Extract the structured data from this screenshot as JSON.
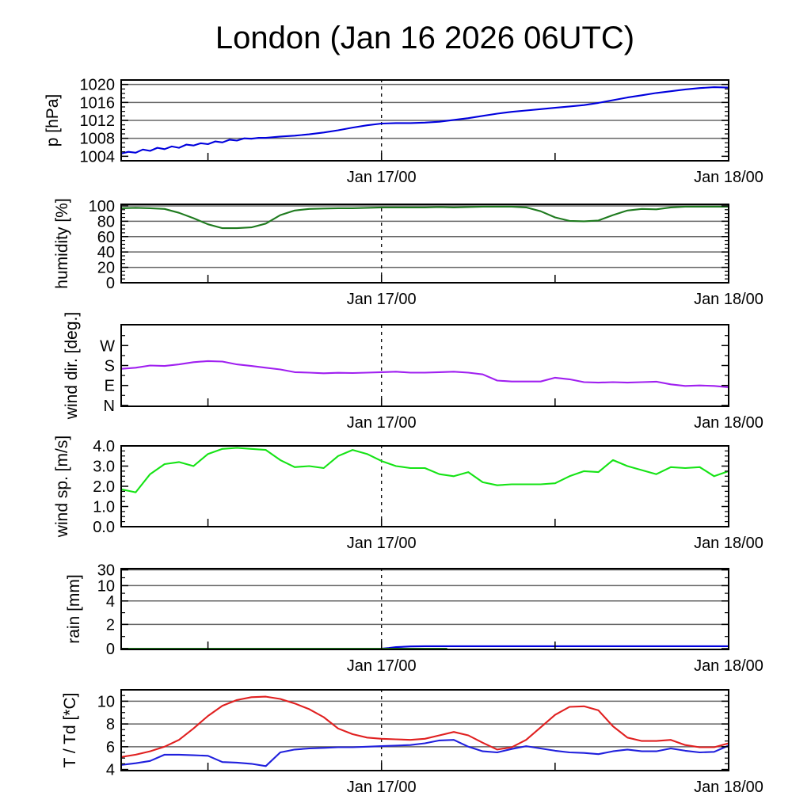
{
  "title": "London (Jan 16 2026 06UTC)",
  "x_axis": {
    "total_hours": 42,
    "tick_hours": [
      6,
      18,
      30
    ],
    "dashed_vline_hour": 18,
    "labels": [
      {
        "hour": 18,
        "text": "Jan 17/00"
      },
      {
        "hour": 42,
        "text": "Jan 18/00"
      }
    ]
  },
  "colors": {
    "axis": "#000000",
    "grid": "#666666",
    "pressure": "#0000dd",
    "humidity": "#1e7a1e",
    "wind_dir": "#a020f0",
    "wind_speed": "#15e315",
    "rain": "#0000dd",
    "rain_secondary": "#1e7a1e",
    "temperature": "#e02020",
    "dewpoint": "#2020dd"
  },
  "chart_data": [
    {
      "id": "pressure",
      "type": "line",
      "ylabel": "p [hPa]",
      "scale": {
        "kind": "linear",
        "min": 1003,
        "max": 1021
      },
      "yticks_major": [
        {
          "v": 1004,
          "label": "1004"
        },
        {
          "v": 1008,
          "label": "1008"
        },
        {
          "v": 1012,
          "label": "1012"
        },
        {
          "v": 1016,
          "label": "1016"
        },
        {
          "v": 1020,
          "label": "1020"
        }
      ],
      "yticks_minor": [
        1005,
        1006,
        1007,
        1009,
        1010,
        1011,
        1013,
        1014,
        1015,
        1017,
        1018,
        1019
      ],
      "grid_values": [
        1008,
        1012,
        1016,
        1020
      ],
      "series": [
        {
          "name": "pressure",
          "color": "#0000dd",
          "t": [
            0,
            0.5,
            1,
            1.5,
            2,
            2.5,
            3,
            3.5,
            4,
            4.5,
            5,
            5.5,
            6,
            6.5,
            7,
            7.5,
            8,
            8.5,
            9,
            9.5,
            10,
            11,
            12,
            13,
            14,
            15,
            16,
            17,
            18,
            19,
            20,
            21,
            22,
            23,
            24,
            25,
            26,
            27,
            28,
            29,
            30,
            31,
            32,
            33,
            34,
            35,
            36,
            37,
            38,
            39,
            40,
            41,
            42
          ],
          "v": [
            1004.6,
            1005.0,
            1004.8,
            1005.5,
            1005.2,
            1005.9,
            1005.6,
            1006.2,
            1005.9,
            1006.6,
            1006.4,
            1006.9,
            1006.7,
            1007.3,
            1007.1,
            1007.7,
            1007.5,
            1008.0,
            1007.9,
            1008.1,
            1008.1,
            1008.4,
            1008.6,
            1008.9,
            1009.3,
            1009.8,
            1010.4,
            1010.9,
            1011.3,
            1011.4,
            1011.4,
            1011.5,
            1011.7,
            1012.1,
            1012.5,
            1013.0,
            1013.5,
            1013.9,
            1014.2,
            1014.5,
            1014.8,
            1015.1,
            1015.4,
            1015.9,
            1016.5,
            1017.1,
            1017.6,
            1018.1,
            1018.5,
            1018.9,
            1019.2,
            1019.4,
            1019.3
          ]
        }
      ]
    },
    {
      "id": "humidity",
      "type": "line",
      "ylabel": "humidity [%]",
      "scale": {
        "kind": "linear",
        "min": 0,
        "max": 102
      },
      "yticks_major": [
        {
          "v": 0,
          "label": "0"
        },
        {
          "v": 20,
          "label": "20"
        },
        {
          "v": 40,
          "label": "40"
        },
        {
          "v": 60,
          "label": "60"
        },
        {
          "v": 80,
          "label": "80"
        },
        {
          "v": 100,
          "label": "100"
        }
      ],
      "yticks_minor": [
        5,
        10,
        15,
        25,
        30,
        35,
        45,
        50,
        55,
        65,
        70,
        75,
        85,
        90,
        95
      ],
      "grid_values": [
        20,
        40,
        60,
        80,
        100
      ],
      "series": [
        {
          "name": "humidity",
          "color": "#1e7a1e",
          "v": [
            97,
            97.5,
            97,
            96,
            91,
            84,
            76,
            71,
            71,
            72,
            77,
            88,
            94,
            96,
            96.5,
            97,
            97,
            97.5,
            98,
            98,
            98,
            98,
            98.5,
            98,
            98.5,
            99,
            99,
            99,
            98,
            93,
            85,
            80.5,
            80,
            81,
            88,
            94,
            96,
            95.5,
            98,
            99,
            99,
            99,
            99
          ]
        }
      ]
    },
    {
      "id": "wind-direction",
      "type": "line",
      "ylabel": "wind dir. [deg.]",
      "scale": {
        "kind": "linear",
        "min": -4,
        "max": 364
      },
      "yticks_major": [
        {
          "v": 0,
          "label": "N"
        },
        {
          "v": 90,
          "label": "E"
        },
        {
          "v": 180,
          "label": "S"
        },
        {
          "v": 270,
          "label": "W"
        }
      ],
      "yticks_minor": [
        45,
        135,
        225,
        315
      ],
      "grid_values": [],
      "series": [
        {
          "name": "wind-direction",
          "color": "#a020f0",
          "v": [
            165,
            170,
            180,
            178,
            185,
            195,
            200,
            198,
            185,
            178,
            170,
            162,
            150,
            148,
            145,
            147,
            146,
            148,
            150,
            152,
            148,
            148,
            150,
            152,
            148,
            140,
            112,
            108,
            108,
            108,
            125,
            118,
            105,
            103,
            105,
            103,
            105,
            107,
            95,
            88,
            90,
            88,
            82
          ]
        }
      ]
    },
    {
      "id": "wind-speed",
      "type": "line",
      "ylabel": "wind sp. [m/s]",
      "scale": {
        "kind": "linear",
        "min": 0,
        "max": 4
      },
      "yticks_major": [
        {
          "v": 0,
          "label": "0.0"
        },
        {
          "v": 1,
          "label": "1.0"
        },
        {
          "v": 2,
          "label": "2.0"
        },
        {
          "v": 3,
          "label": "3.0"
        },
        {
          "v": 4,
          "label": "4.0"
        }
      ],
      "yticks_minor": [
        0.25,
        0.5,
        0.75,
        1.25,
        1.5,
        1.75,
        2.25,
        2.5,
        2.75,
        3.25,
        3.5,
        3.75
      ],
      "grid_values": [],
      "series": [
        {
          "name": "wind-speed",
          "color": "#15e315",
          "v": [
            1.85,
            1.7,
            2.6,
            3.1,
            3.2,
            3.0,
            3.6,
            3.85,
            3.9,
            3.85,
            3.8,
            3.3,
            2.95,
            3.0,
            2.9,
            3.5,
            3.8,
            3.6,
            3.25,
            3.0,
            2.9,
            2.9,
            2.6,
            2.5,
            2.7,
            2.2,
            2.05,
            2.1,
            2.1,
            2.1,
            2.15,
            2.5,
            2.75,
            2.7,
            3.3,
            3.0,
            2.8,
            2.6,
            2.95,
            2.9,
            2.95,
            2.5,
            2.75
          ]
        }
      ]
    },
    {
      "id": "rain",
      "type": "line",
      "ylabel": "rain [mm]",
      "scale": {
        "kind": "piecewise",
        "points": [
          [
            0,
            0.01
          ],
          [
            2,
            0.31
          ],
          [
            4,
            0.6
          ],
          [
            10,
            0.79
          ],
          [
            30,
            0.985
          ]
        ]
      },
      "yticks_major": [
        {
          "v": 0,
          "label": "0"
        },
        {
          "v": 2,
          "label": "2"
        },
        {
          "v": 4,
          "label": "4"
        },
        {
          "v": 10,
          "label": "10"
        },
        {
          "v": 30,
          "label": "30"
        }
      ],
      "yticks_minor": [
        1,
        3,
        7,
        20
      ],
      "grid_values": [
        2,
        4,
        10,
        30
      ],
      "series": [
        {
          "name": "rain-amount",
          "color": "#0000dd",
          "t": [
            0,
            6,
            12,
            18,
            18.5,
            19,
            20,
            21,
            24,
            28,
            32,
            36,
            40,
            42
          ],
          "v": [
            0,
            0,
            0,
            0,
            0.05,
            0.12,
            0.18,
            0.2,
            0.2,
            0.2,
            0.2,
            0.2,
            0.2,
            0.2
          ]
        },
        {
          "name": "rain-secondary",
          "color": "#1e7a1e",
          "t": [
            0,
            6,
            12,
            18,
            22.5
          ],
          "v": [
            0,
            0,
            0,
            0,
            0
          ]
        }
      ]
    },
    {
      "id": "temperature",
      "type": "line",
      "ylabel": "T / Td [*C]",
      "scale": {
        "kind": "linear",
        "min": 3.9,
        "max": 11
      },
      "yticks_major": [
        {
          "v": 4,
          "label": "4"
        },
        {
          "v": 6,
          "label": "6"
        },
        {
          "v": 8,
          "label": "8"
        },
        {
          "v": 10,
          "label": "10"
        }
      ],
      "yticks_minor": [
        4.5,
        5,
        5.5,
        6.5,
        7,
        7.5,
        8.5,
        9,
        9.5,
        10.5
      ],
      "grid_values": [
        6,
        8,
        10
      ],
      "series": [
        {
          "name": "temperature",
          "color": "#e02020",
          "v": [
            5.1,
            5.3,
            5.6,
            6.0,
            6.6,
            7.6,
            8.7,
            9.6,
            10.1,
            10.35,
            10.4,
            10.2,
            9.8,
            9.3,
            8.6,
            7.6,
            7.1,
            6.8,
            6.7,
            6.65,
            6.6,
            6.7,
            7.0,
            7.3,
            7.0,
            6.35,
            5.75,
            5.95,
            6.6,
            7.7,
            8.8,
            9.5,
            9.55,
            9.2,
            7.8,
            6.8,
            6.5,
            6.5,
            6.6,
            6.15,
            5.95,
            5.95,
            6.3
          ]
        },
        {
          "name": "dewpoint",
          "color": "#2020dd",
          "v": [
            4.4,
            4.55,
            4.75,
            5.3,
            5.3,
            5.25,
            5.2,
            4.65,
            4.6,
            4.5,
            4.3,
            5.5,
            5.75,
            5.85,
            5.9,
            5.95,
            5.95,
            6.0,
            6.05,
            6.1,
            6.15,
            6.3,
            6.55,
            6.6,
            6.0,
            5.6,
            5.5,
            5.8,
            6.05,
            5.85,
            5.65,
            5.5,
            5.45,
            5.35,
            5.6,
            5.75,
            5.6,
            5.6,
            5.85,
            5.65,
            5.5,
            5.55,
            6.1
          ]
        }
      ]
    }
  ]
}
